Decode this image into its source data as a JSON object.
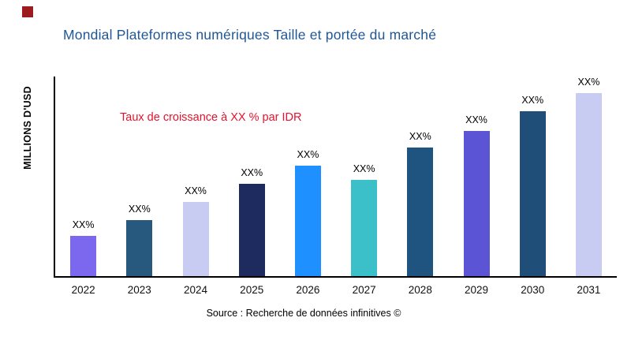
{
  "colors": {
    "title": "#1F5796",
    "annotation": "#E8112D",
    "corner_mark": "#9B1B1E",
    "axis": "#000000"
  },
  "chart_data": {
    "type": "bar",
    "title": "Mondial Plateformes numériques Taille et portée du marché",
    "ylabel": "MILLIONS D'USD",
    "xlabel": "",
    "annotation": "Taux de croissance à XX % par IDR",
    "source": "Source : Recherche de données infinitives ©",
    "categories": [
      "2022",
      "2023",
      "2024",
      "2025",
      "2026",
      "2027",
      "2028",
      "2029",
      "2030",
      "2031"
    ],
    "values": [
      20,
      28,
      37,
      46,
      55,
      48,
      64,
      72,
      82,
      91
    ],
    "bar_labels": [
      "XX%",
      "XX%",
      "XX%",
      "XX%",
      "XX%",
      "XX%",
      "XX%",
      "XX%",
      "XX%",
      "XX%"
    ],
    "bar_colors": [
      "#7B68EE",
      "#27597F",
      "#C9CCF2",
      "#1E2B5E",
      "#1E90FF",
      "#3BBFC9",
      "#1F5380",
      "#5B55D6",
      "#1F4E79",
      "#C9CCF2"
    ],
    "ylim": [
      0,
      100
    ],
    "grid": false,
    "legend": false
  }
}
